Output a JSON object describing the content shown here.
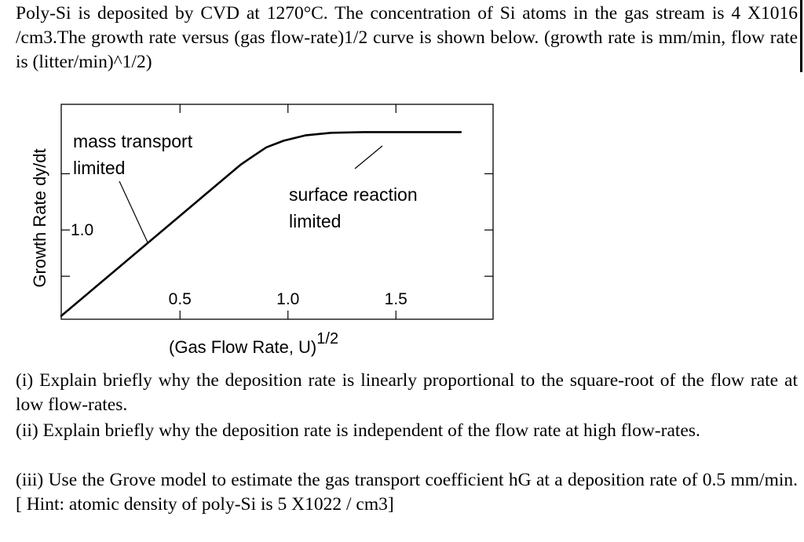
{
  "problem": {
    "intro": "Poly-Si is deposited by CVD at 1270°C. The concentration of Si atoms in the gas stream is 4 X1016 /cm3.The growth rate versus (gas flow-rate)1/2 curve is shown below. (growth rate is mm/min, flow rate is (litter/min)^1/2)",
    "q1": "(i) Explain briefly why the deposition rate is linearly proportional to the square-root of the flow rate at low flow-rates.",
    "q2": "(ii) Explain briefly why the deposition rate is independent of the flow rate at high flow-rates.",
    "q3": "(iii) Use the Grove model to estimate the gas transport coefficient hG at a deposition rate of 0.5 mm/min. [ Hint: atomic density of poly-Si is 5 X1022 / cm3]"
  },
  "chart_data": {
    "type": "line",
    "xlabel": "(Gas Flow Rate,  U)",
    "xlabel_superscript": "1/2",
    "ylabel": "Growth Rate dy/dt",
    "xlim": [
      -0.05,
      1.95
    ],
    "ylim": [
      -0.35,
      2.9
    ],
    "x_ticks": [
      0.5,
      1.0,
      1.5
    ],
    "x_tick_labels": [
      "0.5",
      "1.0",
      "1.5"
    ],
    "y_ticks": [
      0.3,
      1.0,
      1.85
    ],
    "y_tick_labels": [
      "",
      "1.0",
      ""
    ],
    "grid": false,
    "series": [
      {
        "x": [
          -0.05,
          0.78,
          0.84,
          0.9,
          0.98,
          1.08,
          1.2,
          1.35,
          1.8
        ],
        "y": [
          -0.3,
          1.985,
          2.12,
          2.25,
          2.35,
          2.43,
          2.47,
          2.48,
          2.48
        ]
      }
    ],
    "annotations": [
      {
        "line1": "mass transport",
        "line2": "limited"
      },
      {
        "line1": "surface reaction",
        "line2": "limited"
      }
    ]
  }
}
